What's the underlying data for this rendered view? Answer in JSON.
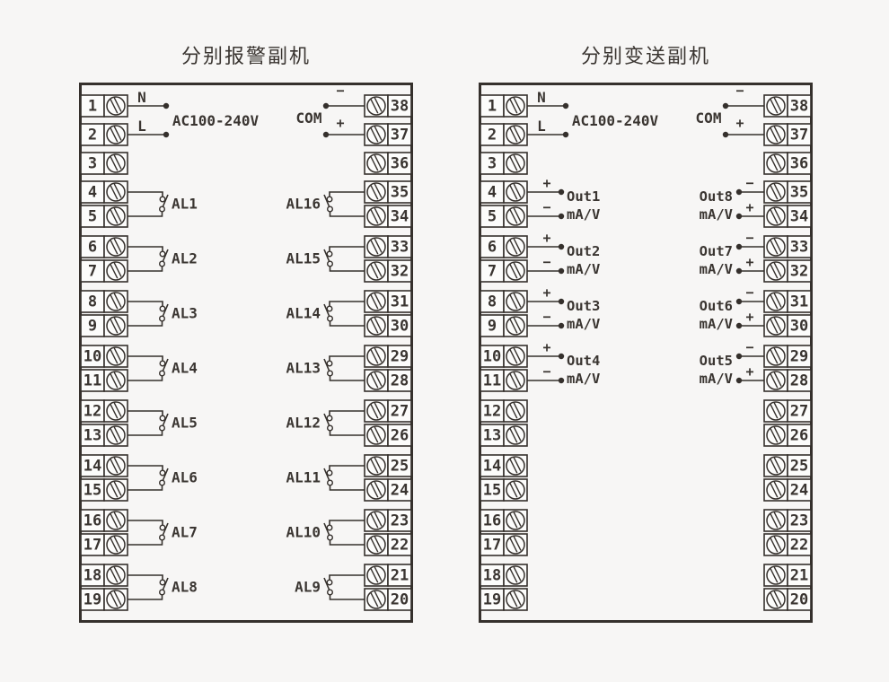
{
  "colors": {
    "background": "#f7f6f5",
    "line": "#35302c",
    "text": "#3a3531",
    "cell_fill": "#fcfcfb"
  },
  "panels": [
    {
      "id": "alarm",
      "title": "分别报警副机",
      "left_terminals": [
        "1",
        "2",
        "3",
        "4",
        "5",
        "6",
        "7",
        "8",
        "9",
        "10",
        "11",
        "12",
        "13",
        "14",
        "15",
        "16",
        "17",
        "18",
        "19"
      ],
      "right_terminals": [
        "38",
        "37",
        "36",
        "35",
        "34",
        "33",
        "32",
        "31",
        "30",
        "29",
        "28",
        "27",
        "26",
        "25",
        "24",
        "23",
        "22",
        "21",
        "20"
      ],
      "power": {
        "neutral": "N",
        "live": "L",
        "voltage": "AC100-240V"
      },
      "com": {
        "label": "COM",
        "top_sign": "−",
        "bottom_sign": "+"
      },
      "contacts_left": [
        {
          "upper": "4",
          "lower": "5",
          "label": "AL1"
        },
        {
          "upper": "6",
          "lower": "7",
          "label": "AL2"
        },
        {
          "upper": "8",
          "lower": "9",
          "label": "AL3"
        },
        {
          "upper": "10",
          "lower": "11",
          "label": "AL4"
        },
        {
          "upper": "12",
          "lower": "13",
          "label": "AL5"
        },
        {
          "upper": "14",
          "lower": "15",
          "label": "AL6"
        },
        {
          "upper": "16",
          "lower": "17",
          "label": "AL7"
        },
        {
          "upper": "18",
          "lower": "19",
          "label": "AL8"
        }
      ],
      "contacts_right": [
        {
          "upper": "35",
          "lower": "34",
          "label": "AL16"
        },
        {
          "upper": "33",
          "lower": "32",
          "label": "AL15"
        },
        {
          "upper": "31",
          "lower": "30",
          "label": "AL14"
        },
        {
          "upper": "29",
          "lower": "28",
          "label": "AL13"
        },
        {
          "upper": "27",
          "lower": "26",
          "label": "AL12"
        },
        {
          "upper": "25",
          "lower": "24",
          "label": "AL11"
        },
        {
          "upper": "23",
          "lower": "22",
          "label": "AL10"
        },
        {
          "upper": "21",
          "lower": "20",
          "label": "AL9"
        }
      ],
      "outputs_left": [],
      "outputs_right": []
    },
    {
      "id": "transmit",
      "title": "分别变送副机",
      "left_terminals": [
        "1",
        "2",
        "3",
        "4",
        "5",
        "6",
        "7",
        "8",
        "9",
        "10",
        "11",
        "12",
        "13",
        "14",
        "15",
        "16",
        "17",
        "18",
        "19"
      ],
      "right_terminals": [
        "38",
        "37",
        "36",
        "35",
        "34",
        "33",
        "32",
        "31",
        "30",
        "29",
        "28",
        "27",
        "26",
        "25",
        "24",
        "23",
        "22",
        "21",
        "20"
      ],
      "power": {
        "neutral": "N",
        "live": "L",
        "voltage": "AC100-240V"
      },
      "com": {
        "label": "COM",
        "top_sign": "−",
        "bottom_sign": "+"
      },
      "contacts_left": [],
      "contacts_right": [],
      "outputs_left": [
        {
          "terminal": "4",
          "sign": "+",
          "label": "Out1",
          "role": "out"
        },
        {
          "terminal": "5",
          "sign": "−",
          "label": "mA/V",
          "role": "unit"
        },
        {
          "terminal": "6",
          "sign": "+",
          "label": "Out2",
          "role": "out"
        },
        {
          "terminal": "7",
          "sign": "−",
          "label": "mA/V",
          "role": "unit"
        },
        {
          "terminal": "8",
          "sign": "+",
          "label": "Out3",
          "role": "out"
        },
        {
          "terminal": "9",
          "sign": "−",
          "label": "mA/V",
          "role": "unit"
        },
        {
          "terminal": "10",
          "sign": "+",
          "label": "Out4",
          "role": "out"
        },
        {
          "terminal": "11",
          "sign": "−",
          "label": "mA/V",
          "role": "unit"
        }
      ],
      "outputs_right": [
        {
          "terminal": "35",
          "sign": "−",
          "label": "Out8",
          "role": "out"
        },
        {
          "terminal": "34",
          "sign": "+",
          "label": "mA/V",
          "role": "unit"
        },
        {
          "terminal": "33",
          "sign": "−",
          "label": "Out7",
          "role": "out"
        },
        {
          "terminal": "32",
          "sign": "+",
          "label": "mA/V",
          "role": "unit"
        },
        {
          "terminal": "31",
          "sign": "−",
          "label": "Out6",
          "role": "out"
        },
        {
          "terminal": "30",
          "sign": "+",
          "label": "mA/V",
          "role": "unit"
        },
        {
          "terminal": "29",
          "sign": "−",
          "label": "Out5",
          "role": "out"
        },
        {
          "terminal": "28",
          "sign": "+",
          "label": "mA/V",
          "role": "unit"
        }
      ]
    }
  ]
}
